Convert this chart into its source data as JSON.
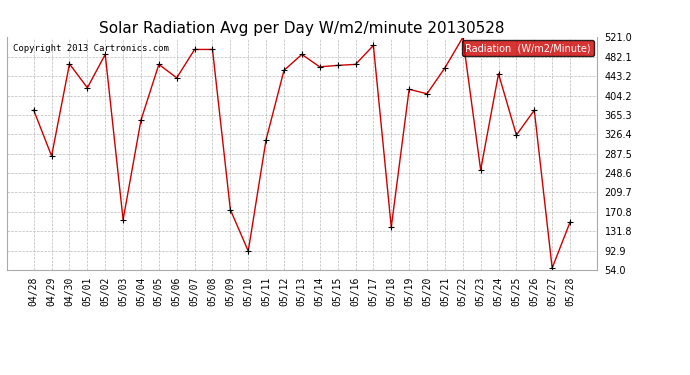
{
  "title": "Solar Radiation Avg per Day W/m2/minute 20130528",
  "copyright": "Copyright 2013 Cartronics.com",
  "legend_label": "Radiation  (W/m2/Minute)",
  "dates": [
    "04/28",
    "04/29",
    "04/30",
    "05/01",
    "05/02",
    "05/03",
    "05/04",
    "05/05",
    "05/06",
    "05/07",
    "05/08",
    "05/09",
    "05/10",
    "05/11",
    "05/12",
    "05/13",
    "05/14",
    "05/15",
    "05/16",
    "05/17",
    "05/18",
    "05/19",
    "05/20",
    "05/21",
    "05/22",
    "05/23",
    "05/24",
    "05/25",
    "05/26",
    "05/27",
    "05/28"
  ],
  "values": [
    375,
    283,
    468,
    420,
    487,
    155,
    355,
    467,
    440,
    497,
    497,
    175,
    92,
    316,
    455,
    487,
    462,
    465,
    467,
    505,
    140,
    417,
    408,
    460,
    521,
    255,
    448,
    325,
    375,
    58,
    150
  ],
  "ylim": [
    54.0,
    521.0
  ],
  "yticks": [
    54.0,
    92.9,
    131.8,
    170.8,
    209.7,
    248.6,
    287.5,
    326.4,
    365.3,
    404.2,
    443.2,
    482.1,
    521.0
  ],
  "line_color": "#cc0000",
  "marker_color": "#000000",
  "bg_color": "#ffffff",
  "plot_bg_color": "#ffffff",
  "grid_color": "#aaaaaa",
  "title_fontsize": 11,
  "copyright_fontsize": 6.5,
  "tick_fontsize": 7,
  "legend_bg": "#cc0000",
  "legend_text_color": "#ffffff",
  "legend_fontsize": 7
}
